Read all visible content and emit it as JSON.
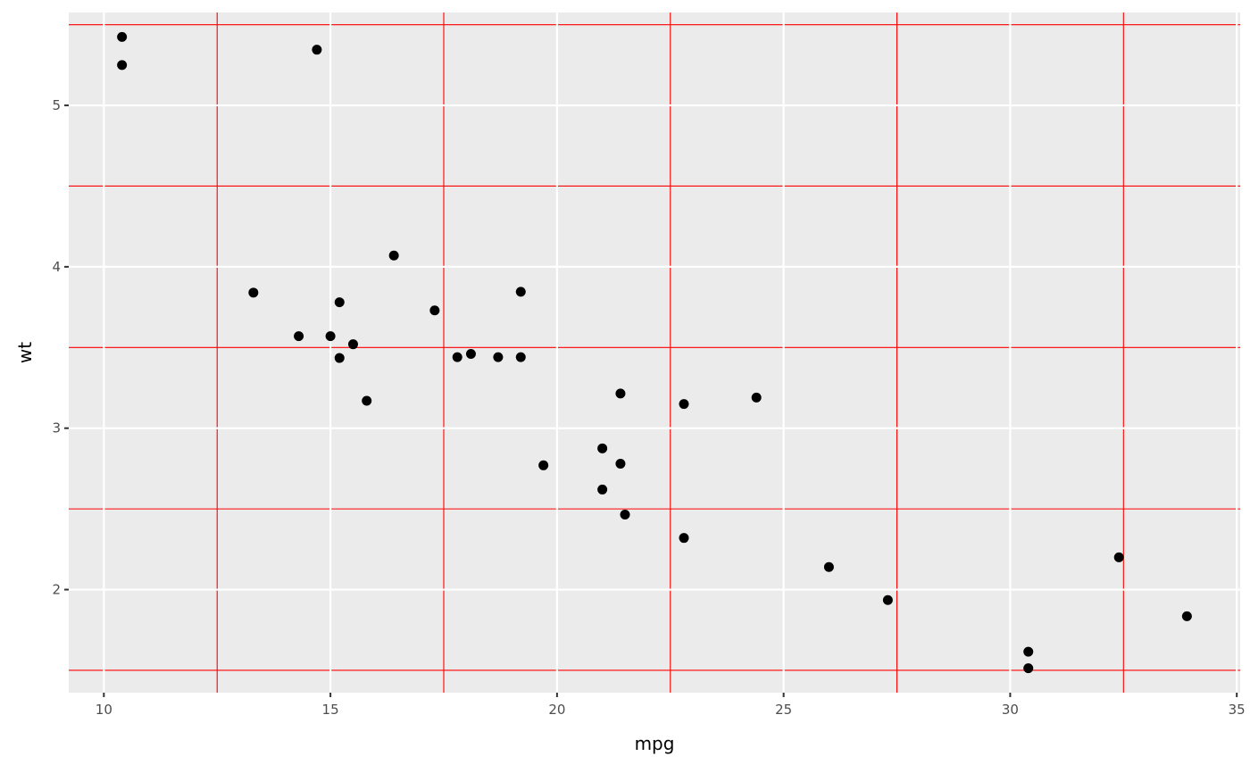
{
  "chart_data": {
    "type": "scatter",
    "xlabel": "mpg",
    "ylabel": "wt",
    "xlim": [
      9.225,
      35.075
    ],
    "ylim": [
      1.3615,
      5.5755
    ],
    "x_ticks": [
      10,
      15,
      20,
      25,
      30,
      35
    ],
    "y_ticks": [
      2,
      3,
      4,
      5
    ],
    "x_minor_gridlines": [
      12.5,
      17.5,
      22.5,
      27.5,
      32.5
    ],
    "y_minor_gridlines": [
      1.5,
      2.5,
      3.5,
      4.5,
      5.5
    ],
    "grid": true,
    "colors": {
      "panel_background": "#ebebeb",
      "major_grid": "#ffffff",
      "minor_grid": "#ff0000",
      "points": "#000000"
    },
    "points": [
      {
        "x": 21.0,
        "y": 2.62
      },
      {
        "x": 21.0,
        "y": 2.875
      },
      {
        "x": 22.8,
        "y": 2.32
      },
      {
        "x": 21.4,
        "y": 3.215
      },
      {
        "x": 18.7,
        "y": 3.44
      },
      {
        "x": 18.1,
        "y": 3.46
      },
      {
        "x": 14.3,
        "y": 3.57
      },
      {
        "x": 24.4,
        "y": 3.19
      },
      {
        "x": 22.8,
        "y": 3.15
      },
      {
        "x": 19.2,
        "y": 3.44
      },
      {
        "x": 17.8,
        "y": 3.44
      },
      {
        "x": 16.4,
        "y": 4.07
      },
      {
        "x": 17.3,
        "y": 3.73
      },
      {
        "x": 15.2,
        "y": 3.78
      },
      {
        "x": 10.4,
        "y": 5.25
      },
      {
        "x": 10.4,
        "y": 5.424
      },
      {
        "x": 14.7,
        "y": 5.345
      },
      {
        "x": 32.4,
        "y": 2.2
      },
      {
        "x": 30.4,
        "y": 1.615
      },
      {
        "x": 33.9,
        "y": 1.835
      },
      {
        "x": 21.5,
        "y": 2.465
      },
      {
        "x": 15.5,
        "y": 3.52
      },
      {
        "x": 15.2,
        "y": 3.435
      },
      {
        "x": 13.3,
        "y": 3.84
      },
      {
        "x": 19.2,
        "y": 3.845
      },
      {
        "x": 27.3,
        "y": 1.935
      },
      {
        "x": 26.0,
        "y": 2.14
      },
      {
        "x": 30.4,
        "y": 1.513
      },
      {
        "x": 15.8,
        "y": 3.17
      },
      {
        "x": 19.7,
        "y": 2.77
      },
      {
        "x": 15.0,
        "y": 3.57
      },
      {
        "x": 21.4,
        "y": 2.78
      }
    ]
  }
}
